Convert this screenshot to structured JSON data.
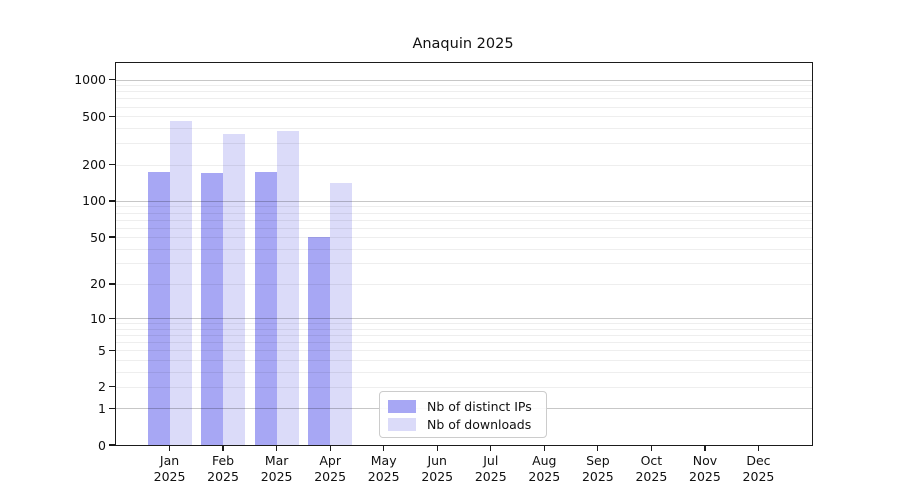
{
  "chart_data": {
    "type": "bar",
    "title": "Anaquin 2025",
    "categories": [
      "Jan 2025",
      "Feb 2025",
      "Mar 2025",
      "Apr 2025",
      "May 2025",
      "Jun 2025",
      "Jul 2025",
      "Aug 2025",
      "Sep 2025",
      "Oct 2025",
      "Nov 2025",
      "Dec 2025"
    ],
    "x_tick_months": [
      "Jan",
      "Feb",
      "Mar",
      "Apr",
      "May",
      "Jun",
      "Jul",
      "Aug",
      "Sep",
      "Oct",
      "Nov",
      "Dec"
    ],
    "x_tick_year": "2025",
    "series": [
      {
        "name": "Nb of distinct IPs",
        "color": "#a7a7f4",
        "values": [
          172,
          170,
          173,
          50,
          0,
          0,
          0,
          0,
          0,
          0,
          0,
          0
        ]
      },
      {
        "name": "Nb of downloads",
        "color": "#dbdbf9",
        "values": [
          455,
          360,
          375,
          140,
          0,
          0,
          0,
          0,
          0,
          0,
          0,
          0
        ]
      }
    ],
    "y_axis": {
      "scale": "log10(value+1)",
      "ticks": [
        1000,
        500,
        200,
        100,
        50,
        20,
        10,
        5,
        2,
        1,
        0
      ],
      "range": [
        0,
        1370
      ],
      "grid": "horizontal; darker lines at decades (1,10,100,1000), light minor lines at 2-9 multiples"
    },
    "legend": {
      "position": "inside bottom-center",
      "items": [
        "Nb of distinct IPs",
        "Nb of downloads"
      ]
    },
    "colors": {
      "distinct_ips": "#a7a7f4",
      "downloads": "#dbdbf9",
      "axis": "#1b1b1b",
      "grid_minor": "#ececec",
      "grid_major": "#c6c6c6"
    }
  }
}
